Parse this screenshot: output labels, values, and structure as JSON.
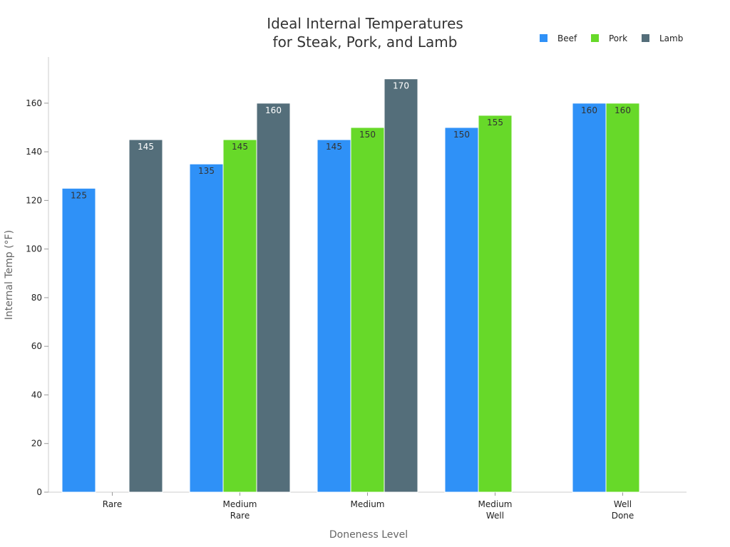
{
  "chart_data": {
    "type": "bar",
    "title": [
      "Ideal Internal Temperatures",
      "for Steak, Pork, and Lamb"
    ],
    "xlabel": "Doneness Level",
    "ylabel": "Internal Temp (°F)",
    "categories": [
      [
        "Rare"
      ],
      [
        "Medium",
        "Rare"
      ],
      [
        "Medium"
      ],
      [
        "Medium",
        "Well"
      ],
      [
        "Well",
        "Done"
      ]
    ],
    "series": [
      {
        "name": "Beef",
        "color": "#2f91f7",
        "label_color": "#333333",
        "values": [
          125,
          135,
          145,
          150,
          160
        ]
      },
      {
        "name": "Pork",
        "color": "#67d929",
        "label_color": "#333333",
        "values": [
          null,
          145,
          150,
          155,
          160
        ]
      },
      {
        "name": "Lamb",
        "color": "#546e7a",
        "label_color": "#ffffff",
        "values": [
          145,
          160,
          170,
          null,
          null
        ]
      }
    ],
    "ylim": [
      0,
      179
    ],
    "yticks": [
      0,
      20,
      40,
      60,
      80,
      100,
      120,
      140,
      160
    ],
    "grid": false,
    "legend_position": "top-right"
  }
}
